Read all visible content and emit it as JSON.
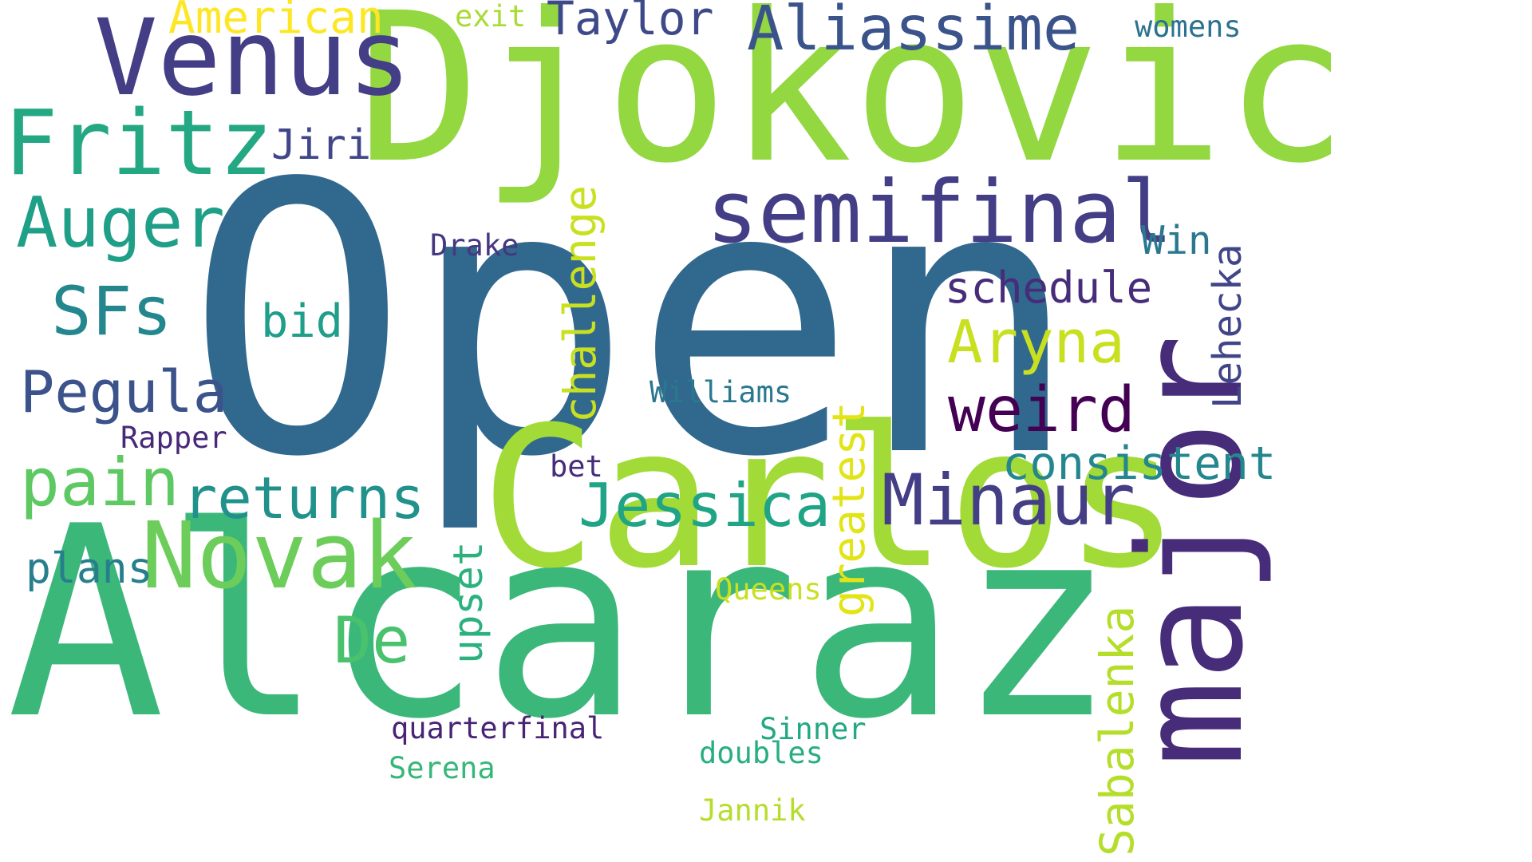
{
  "background": "#ffffff",
  "words": [
    {
      "text": "Open",
      "color": "#31688e"
    },
    {
      "text": "Alcaraz",
      "color": "#3bb77a"
    },
    {
      "text": "Djokovic",
      "color": "#93d741"
    },
    {
      "text": "Carlos",
      "color": "#a2da37"
    },
    {
      "text": "major",
      "color": "#472c7a"
    },
    {
      "text": "Venus",
      "color": "#433e85"
    },
    {
      "text": "semifinal",
      "color": "#433e85"
    },
    {
      "text": "Novak",
      "color": "#6ccd5a"
    },
    {
      "text": "Fritz",
      "color": "#23a883"
    },
    {
      "text": "Aliassime",
      "color": "#3a538b"
    },
    {
      "text": "Minaur",
      "color": "#433e85"
    },
    {
      "text": "Auger",
      "color": "#1f9f88"
    },
    {
      "text": "pain",
      "color": "#5ec962"
    },
    {
      "text": "Jessica",
      "color": "#20a486"
    },
    {
      "text": "returns",
      "color": "#21918c"
    },
    {
      "text": "Pegula",
      "color": "#3b528b"
    },
    {
      "text": "SFs",
      "color": "#24878e"
    },
    {
      "text": "weird",
      "color": "#440154"
    },
    {
      "text": "Aryna",
      "color": "#c8e020"
    },
    {
      "text": "De",
      "color": "#4ac16d"
    },
    {
      "text": "consistent",
      "color": "#24878e"
    },
    {
      "text": "Sabalenka",
      "color": "#b5de2b"
    },
    {
      "text": "challenge",
      "color": "#c8e020"
    },
    {
      "text": "greatest",
      "color": "#e2e418"
    },
    {
      "text": "schedule",
      "color": "#472c7a"
    },
    {
      "text": "Lehecka",
      "color": "#414487"
    },
    {
      "text": "upset",
      "color": "#2cb17e"
    },
    {
      "text": "American",
      "color": "#fde725"
    },
    {
      "text": "Taylor",
      "color": "#3e4989"
    },
    {
      "text": "plans",
      "color": "#277f8e"
    },
    {
      "text": "bid",
      "color": "#1f9e89"
    },
    {
      "text": "Jiri",
      "color": "#404688"
    },
    {
      "text": "Win",
      "color": "#2a788e"
    },
    {
      "text": "quarterfinal",
      "color": "#482475"
    },
    {
      "text": "Williams",
      "color": "#2a788e"
    },
    {
      "text": "Queens",
      "color": "#c8e020"
    },
    {
      "text": "doubles",
      "color": "#28ae80"
    },
    {
      "text": "Sinner",
      "color": "#22a884"
    },
    {
      "text": "Serena",
      "color": "#35b779"
    },
    {
      "text": "Jannik",
      "color": "#b5de2b"
    },
    {
      "text": "Rapper",
      "color": "#482878"
    },
    {
      "text": "Drake",
      "color": "#453781"
    },
    {
      "text": "bet",
      "color": "#472c7a"
    },
    {
      "text": "exit",
      "color": "#a8db34"
    },
    {
      "text": "womens",
      "color": "#2c728e"
    }
  ]
}
